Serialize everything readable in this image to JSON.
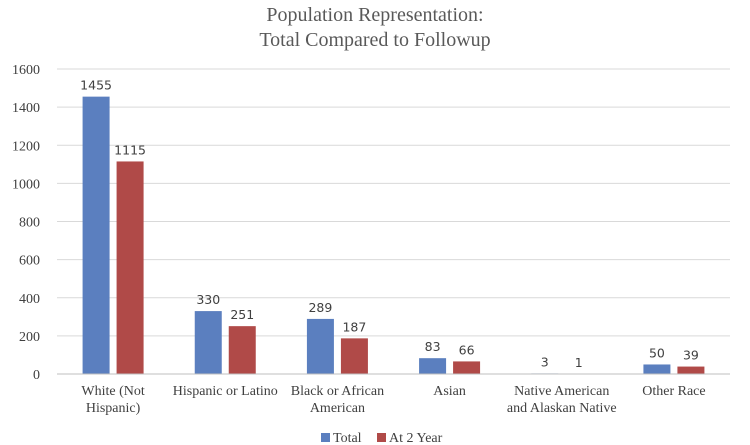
{
  "chart_data": {
    "type": "bar",
    "title_lines": [
      "Population Representation:",
      "Total Compared to Followup"
    ],
    "categories": [
      [
        "White (Not",
        "Hispanic)"
      ],
      [
        "Hispanic or Latino"
      ],
      [
        "Black or African",
        "American"
      ],
      [
        "Asian"
      ],
      [
        "Native American",
        "and Alaskan Native"
      ],
      [
        "Other Race"
      ]
    ],
    "series": [
      {
        "name": "Total",
        "color": "#5b7fbf",
        "values": [
          1455,
          330,
          289,
          83,
          3,
          50
        ]
      },
      {
        "name": "At 2 Year",
        "color": "#b04a48",
        "values": [
          1115,
          251,
          187,
          66,
          1,
          39
        ]
      }
    ],
    "ylim": [
      0,
      1600
    ],
    "yticks": [
      0,
      200,
      400,
      600,
      800,
      1000,
      1200,
      1400,
      1600
    ],
    "grid": true,
    "legend_position": "bottom"
  }
}
